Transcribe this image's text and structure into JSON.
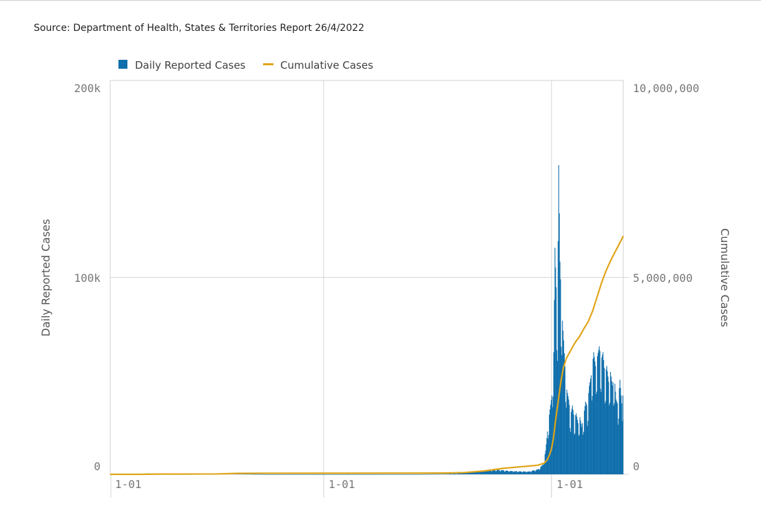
{
  "source_text": "Source: Department of Health, States & Territories Report 26/4/2022",
  "colors": {
    "daily": "#0f6eab",
    "cumulative": "#e0a518",
    "grid": "#d6d6d6",
    "frame": "#cfcfcf"
  },
  "legend": {
    "daily_label": "Daily Reported Cases",
    "cumulative_label": "Cumulative Cases"
  },
  "axes": {
    "left_title": "Daily Reported Cases",
    "right_title": "Cumulative Cases",
    "left_ticks": [
      "0",
      "100k",
      "200k"
    ],
    "right_ticks": [
      "0",
      "5,000,000",
      "10,000,000"
    ],
    "x_ticks": [
      "1-01",
      "1-01",
      "1-01"
    ]
  },
  "chart_data": {
    "type": "bar",
    "title": "",
    "legend_position": "top-left",
    "grid": true,
    "x_range": [
      "2020-01-25",
      "2022-04-26"
    ],
    "x_tick_dates": [
      "2020-01-01",
      "2021-01-01",
      "2022-01-01"
    ],
    "ylim_left": [
      0,
      200000
    ],
    "ylim_right": [
      0,
      10000000
    ],
    "xlabel": "",
    "ylabel": "Daily Reported Cases",
    "ylabel_right": "Cumulative Cases",
    "series": [
      {
        "name": "Daily Reported Cases",
        "type": "bar",
        "axis": "left",
        "points": [
          [
            "2020-01-25",
            0
          ],
          [
            "2020-03-01",
            50
          ],
          [
            "2020-03-25",
            450
          ],
          [
            "2020-04-15",
            50
          ],
          [
            "2020-06-01",
            15
          ],
          [
            "2020-07-15",
            300
          ],
          [
            "2020-08-05",
            700
          ],
          [
            "2020-08-25",
            250
          ],
          [
            "2020-10-01",
            20
          ],
          [
            "2021-01-01",
            20
          ],
          [
            "2021-06-01",
            30
          ],
          [
            "2021-07-01",
            150
          ],
          [
            "2021-08-01",
            400
          ],
          [
            "2021-08-25",
            1300
          ],
          [
            "2021-09-10",
            1900
          ],
          [
            "2021-09-25",
            2200
          ],
          [
            "2021-10-10",
            2200
          ],
          [
            "2021-10-25",
            1700
          ],
          [
            "2021-11-10",
            1500
          ],
          [
            "2021-11-25",
            1400
          ],
          [
            "2021-12-10",
            2500
          ],
          [
            "2021-12-18",
            5000
          ],
          [
            "2021-12-22",
            12000
          ],
          [
            "2021-12-26",
            25000
          ],
          [
            "2021-12-29",
            33000
          ],
          [
            "2022-01-01",
            40000
          ],
          [
            "2022-01-04",
            62000
          ],
          [
            "2022-01-06",
            115000
          ],
          [
            "2022-01-08",
            95000
          ],
          [
            "2022-01-10",
            80000
          ],
          [
            "2022-01-12",
            157000
          ],
          [
            "2022-01-14",
            108000
          ],
          [
            "2022-01-16",
            90000
          ],
          [
            "2022-01-18",
            78000
          ],
          [
            "2022-01-20",
            68000
          ],
          [
            "2022-01-22",
            55000
          ],
          [
            "2022-01-25",
            43000
          ],
          [
            "2022-01-28",
            38000
          ],
          [
            "2022-01-31",
            30000
          ],
          [
            "2022-02-03",
            35000
          ],
          [
            "2022-02-06",
            28000
          ],
          [
            "2022-02-09",
            31000
          ],
          [
            "2022-02-12",
            26000
          ],
          [
            "2022-02-15",
            29000
          ],
          [
            "2022-02-18",
            24000
          ],
          [
            "2022-02-21",
            30000
          ],
          [
            "2022-02-24",
            37000
          ],
          [
            "2022-02-27",
            34000
          ],
          [
            "2022-03-02",
            45000
          ],
          [
            "2022-03-06",
            52000
          ],
          [
            "2022-03-09",
            62000
          ],
          [
            "2022-03-12",
            55000
          ],
          [
            "2022-03-15",
            60000
          ],
          [
            "2022-03-18",
            65000
          ],
          [
            "2022-03-21",
            58000
          ],
          [
            "2022-03-24",
            62000
          ],
          [
            "2022-03-27",
            50000
          ],
          [
            "2022-03-30",
            55000
          ],
          [
            "2022-04-02",
            47000
          ],
          [
            "2022-04-05",
            52000
          ],
          [
            "2022-04-08",
            45000
          ],
          [
            "2022-04-11",
            50000
          ],
          [
            "2022-04-14",
            38000
          ],
          [
            "2022-04-17",
            35000
          ],
          [
            "2022-04-20",
            48000
          ],
          [
            "2022-04-23",
            36000
          ],
          [
            "2022-04-26",
            40000
          ]
        ]
      },
      {
        "name": "Cumulative Cases",
        "type": "line",
        "axis": "right",
        "points": [
          [
            "2020-01-25",
            0
          ],
          [
            "2020-03-15",
            300
          ],
          [
            "2020-04-15",
            6500
          ],
          [
            "2020-06-15",
            7400
          ],
          [
            "2020-07-15",
            10000
          ],
          [
            "2020-08-15",
            24000
          ],
          [
            "2020-09-15",
            27000
          ],
          [
            "2020-12-31",
            28400
          ],
          [
            "2021-06-01",
            30000
          ],
          [
            "2021-07-15",
            33000
          ],
          [
            "2021-08-15",
            45000
          ],
          [
            "2021-09-15",
            85000
          ],
          [
            "2021-10-15",
            150000
          ],
          [
            "2021-11-15",
            195000
          ],
          [
            "2021-12-10",
            230000
          ],
          [
            "2021-12-20",
            280000
          ],
          [
            "2021-12-25",
            360000
          ],
          [
            "2021-12-29",
            500000
          ],
          [
            "2022-01-01",
            650000
          ],
          [
            "2022-01-04",
            900000
          ],
          [
            "2022-01-07",
            1300000
          ],
          [
            "2022-01-10",
            1650000
          ],
          [
            "2022-01-13",
            2000000
          ],
          [
            "2022-01-16",
            2350000
          ],
          [
            "2022-01-20",
            2700000
          ],
          [
            "2022-01-25",
            2950000
          ],
          [
            "2022-02-01",
            3150000
          ],
          [
            "2022-02-08",
            3350000
          ],
          [
            "2022-02-15",
            3500000
          ],
          [
            "2022-02-22",
            3700000
          ],
          [
            "2022-03-01",
            3880000
          ],
          [
            "2022-03-08",
            4150000
          ],
          [
            "2022-03-15",
            4500000
          ],
          [
            "2022-03-22",
            4850000
          ],
          [
            "2022-03-29",
            5150000
          ],
          [
            "2022-04-05",
            5400000
          ],
          [
            "2022-04-12",
            5620000
          ],
          [
            "2022-04-19",
            5830000
          ],
          [
            "2022-04-26",
            6050000
          ]
        ]
      }
    ]
  }
}
